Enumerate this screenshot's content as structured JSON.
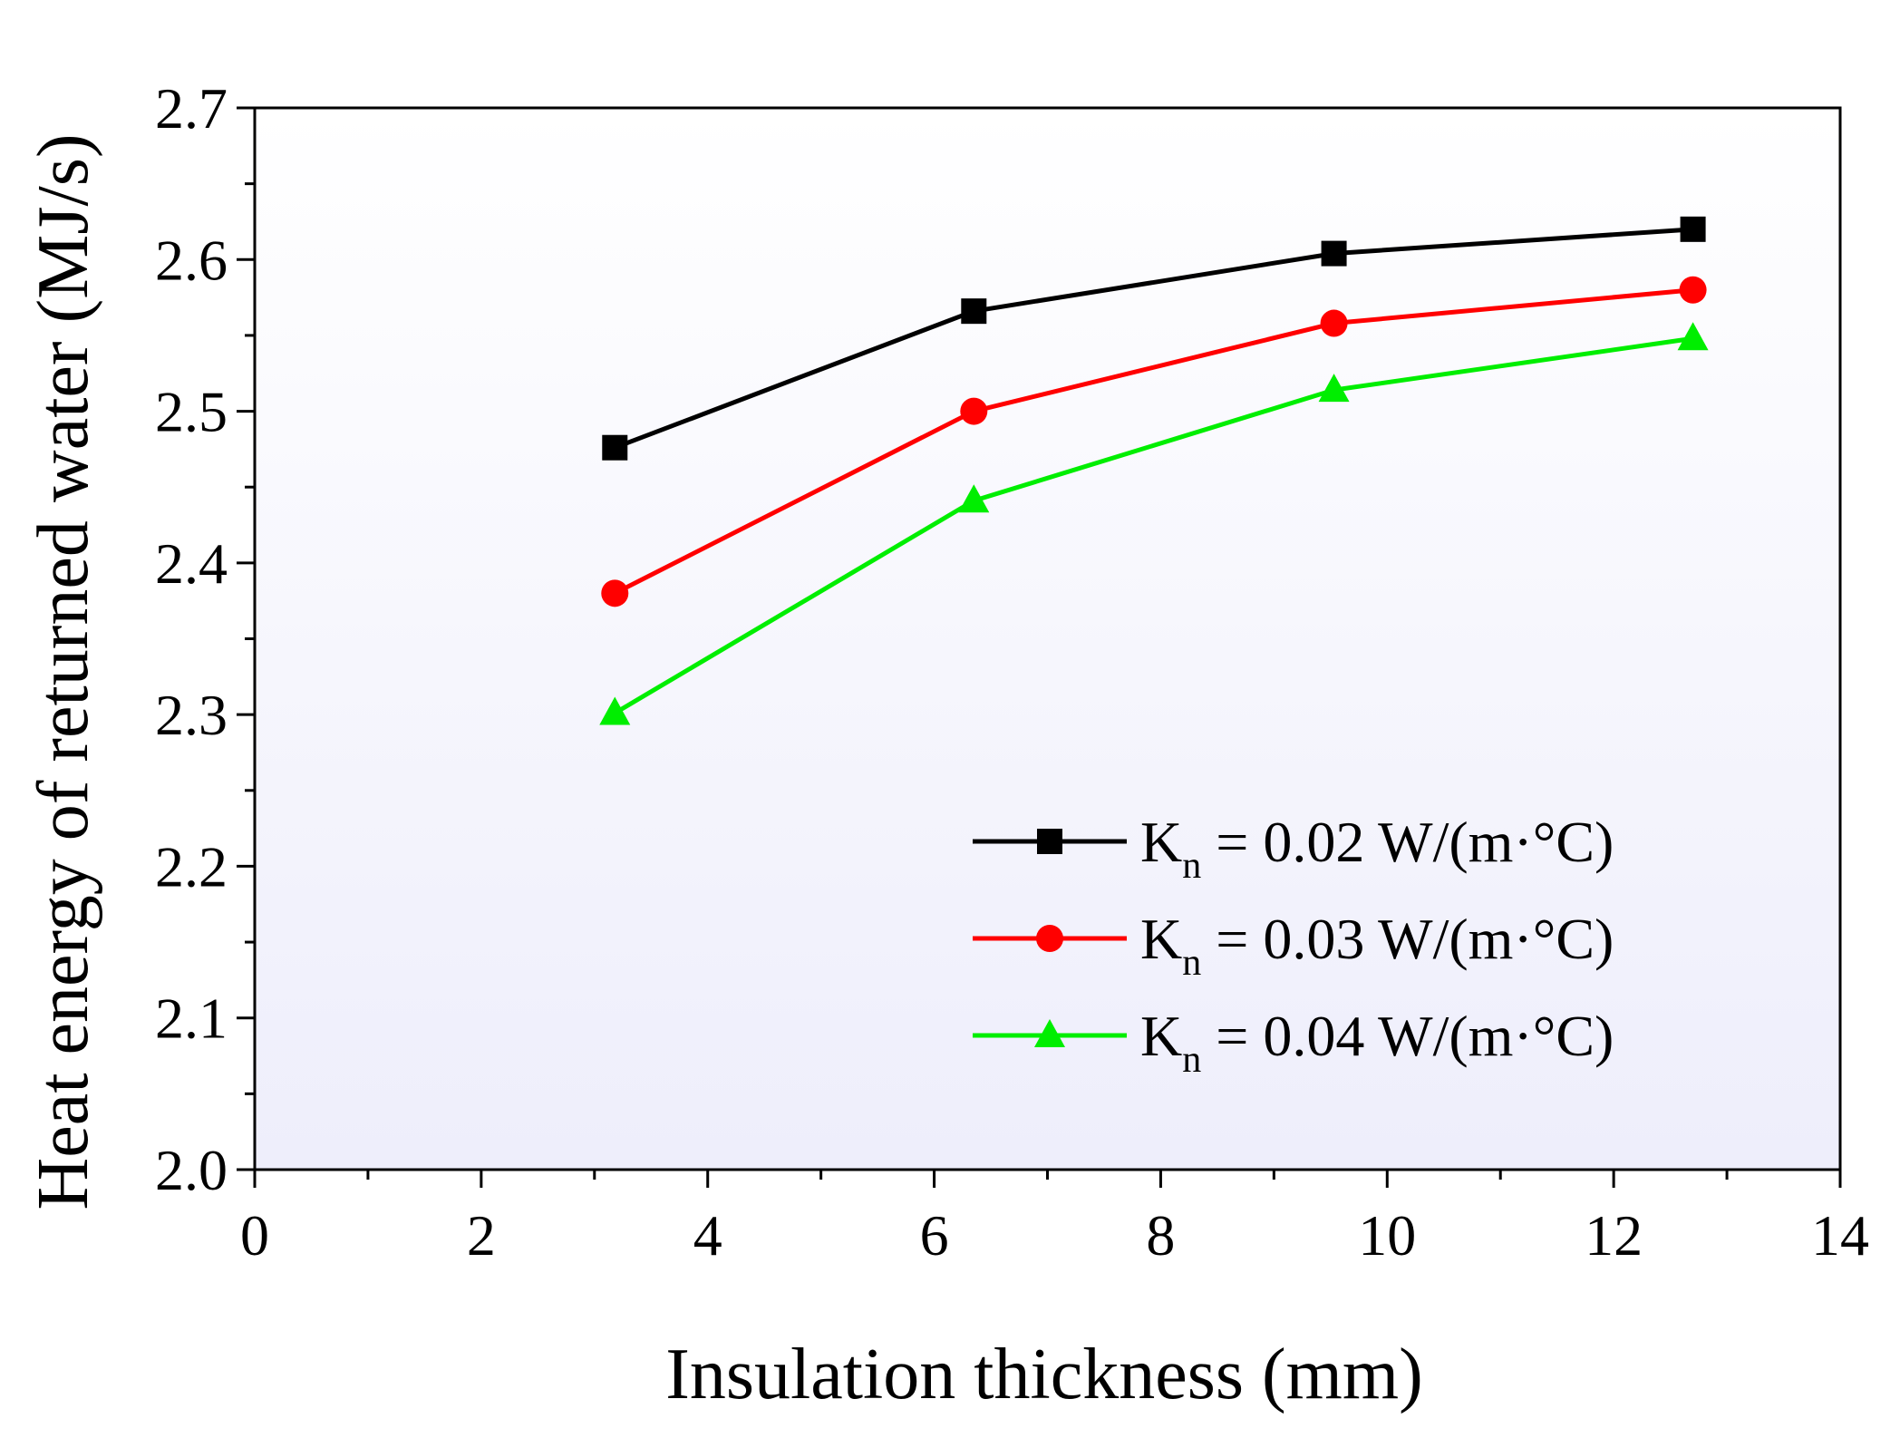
{
  "chart_data": {
    "type": "line",
    "title": "",
    "xlabel": "Insulation thickness (mm)",
    "ylabel": "Heat energy of returned water (MJ/s)",
    "xlim": [
      0,
      14
    ],
    "ylim": [
      2.0,
      2.7
    ],
    "xticks": [
      0,
      2,
      4,
      6,
      8,
      10,
      12,
      14
    ],
    "yticks": [
      2.0,
      2.1,
      2.2,
      2.3,
      2.4,
      2.5,
      2.6,
      2.7
    ],
    "xtick_labels": [
      "0",
      "2",
      "4",
      "6",
      "8",
      "10",
      "12",
      "14"
    ],
    "ytick_labels": [
      "2.0",
      "2.1",
      "2.2",
      "2.3",
      "2.4",
      "2.5",
      "2.6",
      "2.7"
    ],
    "grid": false,
    "legend_position": "lower-right",
    "x": [
      3.18,
      6.35,
      9.53,
      12.7
    ],
    "series": [
      {
        "name": "K",
        "subscript": "n",
        "suffix": " = 0.02 W/(m·°C)",
        "marker": "square",
        "color": "#000000",
        "values": [
          2.476,
          2.566,
          2.604,
          2.62
        ]
      },
      {
        "name": "K",
        "subscript": "n",
        "suffix": " = 0.03 W/(m·°C)",
        "marker": "circle",
        "color": "#ff0000",
        "values": [
          2.38,
          2.5,
          2.558,
          2.58
        ]
      },
      {
        "name": "K",
        "subscript": "n",
        "suffix": " = 0.04 W/(m·°C)",
        "marker": "triangle",
        "color": "#00ee00",
        "values": [
          2.301,
          2.441,
          2.514,
          2.548
        ]
      }
    ]
  }
}
